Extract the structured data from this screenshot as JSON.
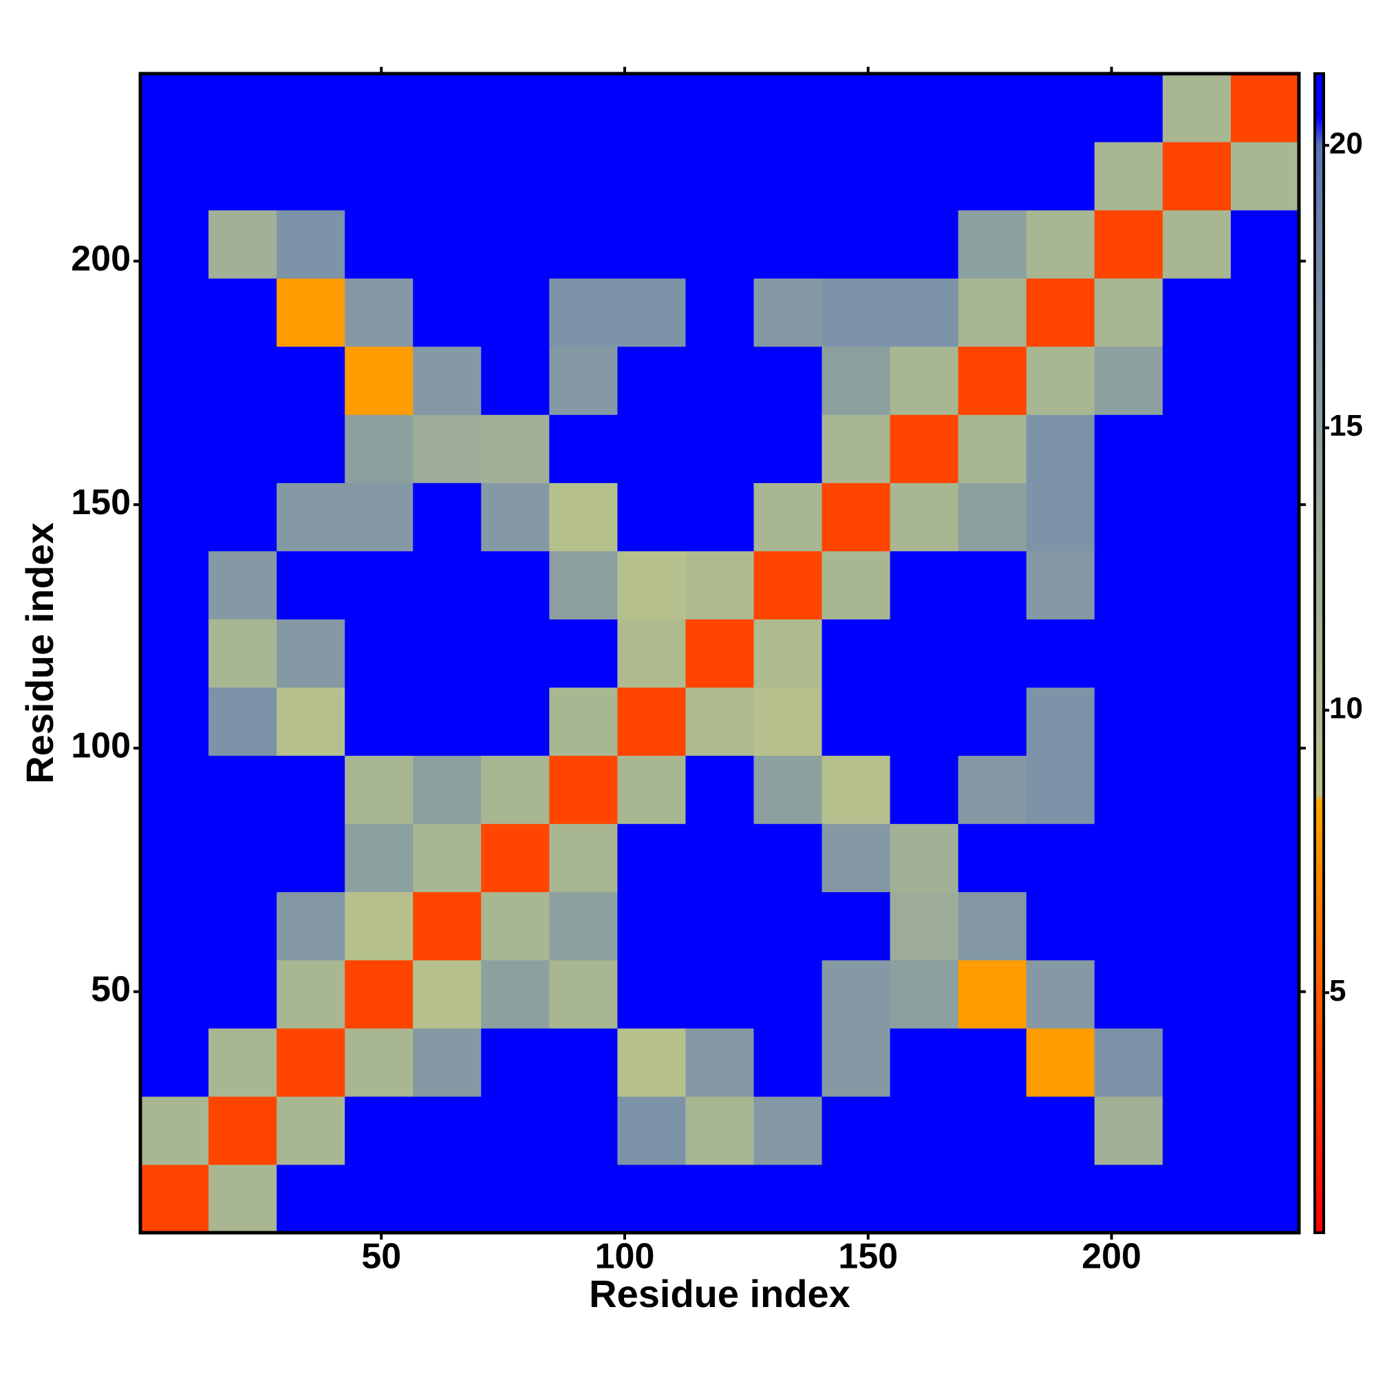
{
  "chart_data": {
    "type": "heatmap",
    "xlabel": "Residue index",
    "ylabel": "Residue index",
    "xlim": [
      0.5,
      238.5
    ],
    "ylim": [
      0.5,
      238.5
    ],
    "xticks": [
      50,
      100,
      150,
      200
    ],
    "yticks": [
      50,
      100,
      150,
      200
    ],
    "xbins": [
      0.5,
      14.5,
      28.5,
      42.5,
      56.5,
      70.5,
      84.5,
      98.5,
      112.5,
      126.5,
      140.5,
      154.5,
      168.5,
      182.5,
      196.5,
      210.5,
      224.5,
      238.5
    ],
    "ybins": [
      0.5,
      14.5,
      28.5,
      42.5,
      56.5,
      70.5,
      84.5,
      98.5,
      112.5,
      126.5,
      140.5,
      154.5,
      168.5,
      182.5,
      196.5,
      210.5,
      224.5,
      238.5
    ],
    "z": [
      [
        4,
        11,
        21,
        21,
        21,
        21,
        21,
        21,
        21,
        21,
        21,
        21,
        21,
        21,
        21,
        21,
        21
      ],
      [
        11,
        4,
        11,
        21,
        21,
        21,
        21,
        17,
        11,
        16,
        21,
        21,
        21,
        21,
        12,
        21,
        21
      ],
      [
        21,
        11,
        4,
        11,
        16,
        21,
        21,
        9,
        16,
        21,
        16,
        21,
        21,
        8,
        17,
        21,
        21
      ],
      [
        21,
        21,
        11,
        4,
        9,
        15,
        11,
        21,
        21,
        21,
        16,
        15,
        8,
        16,
        21,
        21,
        21
      ],
      [
        21,
        21,
        16,
        9,
        4,
        11,
        15,
        21,
        21,
        21,
        21,
        13,
        16,
        21,
        21,
        21,
        21
      ],
      [
        21,
        21,
        21,
        15,
        11,
        4,
        11,
        21,
        21,
        21,
        16,
        12,
        21,
        21,
        21,
        21,
        21
      ],
      [
        21,
        21,
        21,
        11,
        15,
        11,
        4,
        11,
        21,
        15,
        9,
        21,
        16,
        17,
        21,
        21,
        21
      ],
      [
        21,
        17,
        9,
        21,
        21,
        21,
        11,
        4,
        10,
        9,
        21,
        21,
        21,
        17,
        21,
        21,
        21
      ],
      [
        21,
        11,
        16,
        21,
        21,
        21,
        21,
        10,
        4,
        10,
        21,
        21,
        21,
        21,
        21,
        21,
        21
      ],
      [
        21,
        16,
        21,
        21,
        21,
        21,
        15,
        9,
        10,
        4,
        11,
        21,
        21,
        16,
        21,
        21,
        21
      ],
      [
        21,
        21,
        16,
        16,
        21,
        16,
        9,
        21,
        21,
        11,
        4,
        11,
        15,
        17,
        21,
        21,
        21
      ],
      [
        21,
        21,
        21,
        15,
        13,
        12,
        21,
        21,
        21,
        21,
        11,
        4,
        11,
        17,
        21,
        21,
        21
      ],
      [
        21,
        21,
        21,
        8,
        16,
        21,
        16,
        21,
        21,
        21,
        15,
        11,
        4,
        11,
        15,
        21,
        21
      ],
      [
        21,
        21,
        8,
        16,
        21,
        21,
        17,
        17,
        21,
        16,
        17,
        17,
        11,
        4,
        11,
        21,
        21
      ],
      [
        21,
        12,
        17,
        21,
        21,
        21,
        21,
        21,
        21,
        21,
        21,
        21,
        15,
        11,
        4,
        11,
        21
      ],
      [
        21,
        21,
        21,
        21,
        21,
        21,
        21,
        21,
        21,
        21,
        21,
        21,
        21,
        21,
        11,
        4,
        11
      ],
      [
        21,
        21,
        21,
        21,
        21,
        21,
        21,
        21,
        21,
        21,
        21,
        21,
        21,
        21,
        21,
        11,
        4
      ]
    ],
    "zlim": [
      0.75,
      21.27
    ],
    "zticks": [
      5,
      10,
      15,
      20
    ],
    "colorscale": [
      [
        0.75,
        "#ff0000"
      ],
      [
        4,
        "#ff4500"
      ],
      [
        8.4,
        "#ffa500"
      ],
      [
        8.5,
        "#b8c28a"
      ],
      [
        13,
        "#9cac98"
      ],
      [
        17,
        "#7d93a8"
      ],
      [
        20,
        "#5c74b8"
      ],
      [
        20.5,
        "#0000ff"
      ],
      [
        21.27,
        "#0000ff"
      ]
    ]
  }
}
